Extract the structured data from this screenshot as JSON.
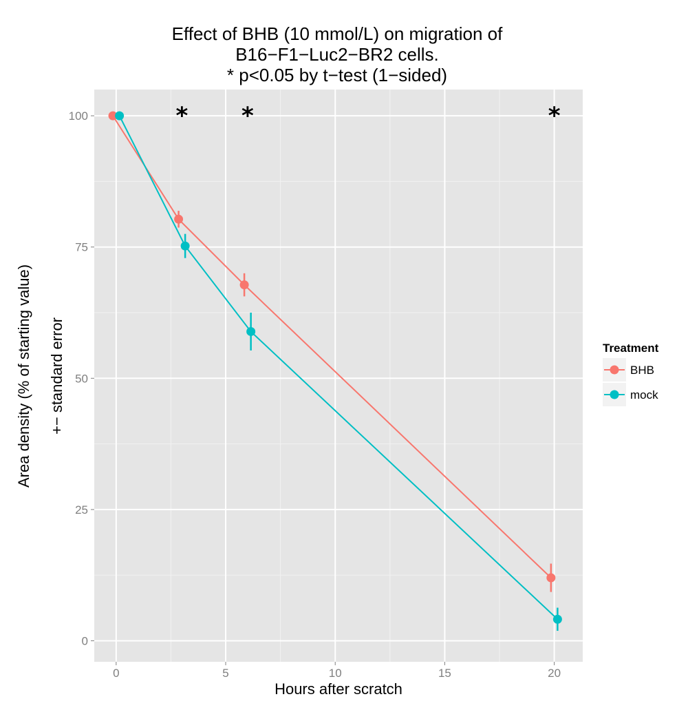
{
  "chart_data": {
    "type": "line",
    "title_lines": [
      "Effect of BHB (10 mmol/L) on migration of",
      "B16−F1−Luc2−BR2 cells.",
      "* p<0.05 by t−test (1−sided)"
    ],
    "xlabel": "Hours after scratch",
    "ylabel_lines": [
      "Area density (% of starting value)",
      "+− standard error"
    ],
    "xlim": [
      -1.0,
      21.3
    ],
    "ylim": [
      -4.0,
      105.0
    ],
    "x_ticks": [
      0,
      5,
      10,
      15,
      20
    ],
    "y_ticks": [
      0,
      25,
      50,
      75,
      100
    ],
    "x_tick_labels": [
      "0",
      "5",
      "10",
      "15",
      "20"
    ],
    "y_tick_labels": [
      "0",
      "25",
      "50",
      "75",
      "100"
    ],
    "grid": true,
    "legend": {
      "title": "Treatment",
      "position": "right"
    },
    "series": [
      {
        "name": "BHB",
        "color": "#F8766D",
        "x": [
          -0.15,
          2.85,
          5.85,
          19.85
        ],
        "y": [
          100,
          80.3,
          67.8,
          12.0
        ],
        "err": [
          0,
          1.6,
          2.2,
          2.7
        ]
      },
      {
        "name": "mock",
        "color": "#00BFC4",
        "x": [
          0.15,
          3.15,
          6.15,
          20.15
        ],
        "y": [
          100,
          75.2,
          58.9,
          4.1
        ],
        "err": [
          0,
          2.3,
          3.6,
          2.2
        ]
      }
    ],
    "annotations": [
      {
        "text": "*",
        "x": 3,
        "y": 101.5
      },
      {
        "text": "*",
        "x": 6,
        "y": 101.5
      },
      {
        "text": "*",
        "x": 20,
        "y": 101.5
      }
    ]
  }
}
